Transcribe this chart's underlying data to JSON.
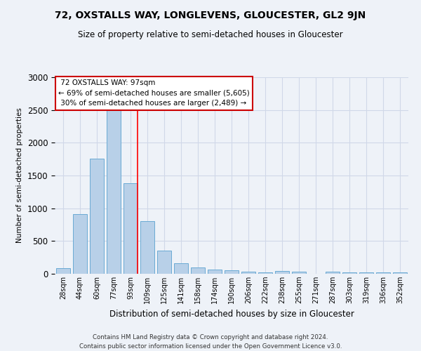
{
  "title": "72, OXSTALLS WAY, LONGLEVENS, GLOUCESTER, GL2 9JN",
  "subtitle": "Size of property relative to semi-detached houses in Gloucester",
  "xlabel": "Distribution of semi-detached houses by size in Gloucester",
  "ylabel": "Number of semi-detached properties",
  "categories": [
    "28sqm",
    "44sqm",
    "60sqm",
    "77sqm",
    "93sqm",
    "109sqm",
    "125sqm",
    "141sqm",
    "158sqm",
    "174sqm",
    "190sqm",
    "206sqm",
    "222sqm",
    "238sqm",
    "255sqm",
    "271sqm",
    "287sqm",
    "303sqm",
    "319sqm",
    "336sqm",
    "352sqm"
  ],
  "values": [
    90,
    910,
    1760,
    2500,
    1380,
    800,
    350,
    160,
    100,
    60,
    50,
    30,
    20,
    40,
    30,
    5,
    30,
    20,
    20,
    20,
    20
  ],
  "bar_color": "#b8d0e8",
  "bar_edge_color": "#6aaad4",
  "red_line_x": 4,
  "property_size": 97,
  "property_name": "72 OXSTALLS WAY",
  "pct_smaller": 69,
  "count_smaller": 5605,
  "pct_larger": 30,
  "count_larger": 2489,
  "annotation_box_color": "#ffffff",
  "annotation_box_edge_color": "#cc0000",
  "ylim": [
    0,
    3000
  ],
  "yticks": [
    0,
    500,
    1000,
    1500,
    2000,
    2500,
    3000
  ],
  "grid_color": "#d0d8e8",
  "background_color": "#eef2f8",
  "footer_line1": "Contains HM Land Registry data © Crown copyright and database right 2024.",
  "footer_line2": "Contains public sector information licensed under the Open Government Licence v3.0."
}
